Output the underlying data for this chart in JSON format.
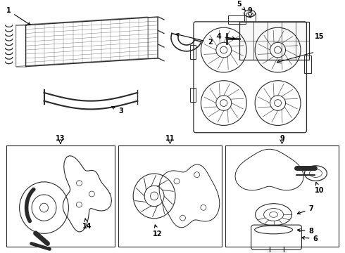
{
  "bg_color": "#ffffff",
  "fig_width": 4.9,
  "fig_height": 3.6,
  "dpi": 100,
  "line_color": "#2a2a2a",
  "text_color": "#000000",
  "arrow_color": "#000000",
  "font_size": 7.0
}
